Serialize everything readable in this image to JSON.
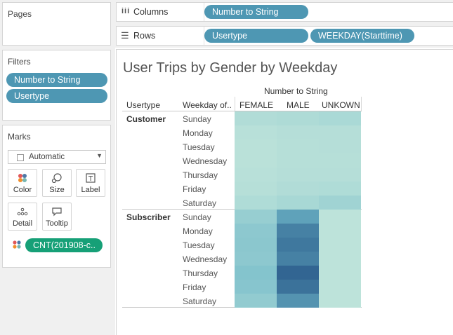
{
  "pages": {
    "title": "Pages"
  },
  "filters": {
    "title": "Filters",
    "items": [
      "Number to String",
      "Usertype"
    ]
  },
  "marks": {
    "title": "Marks",
    "mark_type": "Automatic",
    "buttons": [
      "Color",
      "Size",
      "Label",
      "Detail",
      "Tooltip"
    ],
    "field_pill": "CNT(201908-c.."
  },
  "shelves": {
    "columns_label": "Columns",
    "columns_pills": [
      "Number to String"
    ],
    "rows_label": "Rows",
    "rows_pills": [
      "Usertype",
      "WEEKDAY(Starttime)"
    ]
  },
  "view": {
    "title": "User Trips by Gender by Weekday",
    "column_group_header": "Number to String",
    "row_headers": [
      "Usertype",
      "Weekday of.."
    ],
    "columns": [
      "FEMALE",
      "MALE",
      "UNKOWN"
    ],
    "groups": [
      {
        "name": "Customer",
        "days": [
          "Sunday",
          "Monday",
          "Tuesday",
          "Wednesday",
          "Thursday",
          "Friday",
          "Saturday"
        ]
      },
      {
        "name": "Subscriber",
        "days": [
          "Sunday",
          "Monday",
          "Tuesday",
          "Wednesday",
          "Thursday",
          "Friday",
          "Saturday"
        ]
      }
    ]
  },
  "chart_data": {
    "type": "heatmap",
    "title": "User Trips by Gender by Weekday",
    "x_categories": [
      "FEMALE",
      "MALE",
      "UNKOWN"
    ],
    "y_groups": [
      "Customer",
      "Subscriber"
    ],
    "y_categories": [
      "Sunday",
      "Monday",
      "Tuesday",
      "Wednesday",
      "Thursday",
      "Friday",
      "Saturday"
    ],
    "intensity": [
      [
        0.12,
        0.14,
        0.16
      ],
      [
        0.08,
        0.1,
        0.1
      ],
      [
        0.07,
        0.09,
        0.1
      ],
      [
        0.07,
        0.09,
        0.09
      ],
      [
        0.08,
        0.1,
        0.1
      ],
      [
        0.09,
        0.12,
        0.13
      ],
      [
        0.13,
        0.17,
        0.22
      ],
      [
        0.27,
        0.62,
        0.05
      ],
      [
        0.33,
        0.8,
        0.05
      ],
      [
        0.34,
        0.85,
        0.05
      ],
      [
        0.33,
        0.8,
        0.05
      ],
      [
        0.38,
        0.95,
        0.05
      ],
      [
        0.36,
        0.88,
        0.05
      ],
      [
        0.3,
        0.7,
        0.05
      ]
    ],
    "color_low": "#c6e8dc",
    "color_high": "#2b5c8c",
    "legend": "CNT(201908-c.."
  }
}
